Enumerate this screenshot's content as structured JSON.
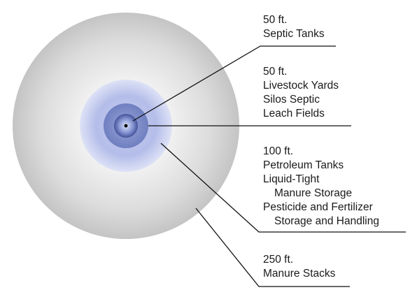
{
  "colors": {
    "outer_zone": "#c9c9c9",
    "outer_zone_center": "#ffffff",
    "zone_100ft": "#aeb8e6",
    "zone_50ft_livestock": "#7a8ac4",
    "zone_50ft_septic": "#4a5a9e",
    "center_dot": "#0a0a0a",
    "leader_line": "#111111",
    "text": "#1a1a1a"
  },
  "zones": [
    {
      "key": "septic",
      "distance": "50 ft.",
      "lines": [
        "Septic Tanks"
      ]
    },
    {
      "key": "livestock",
      "distance": "50 ft.",
      "lines": [
        "Livestock Yards",
        "Silos Septic",
        "Leach Fields"
      ]
    },
    {
      "key": "petroleum",
      "distance": "100 ft.",
      "lines": [
        "Petroleum Tanks",
        "Liquid-Tight",
        "Manure Storage",
        "Pesticide and Fertilizer",
        "Storage and Handling"
      ]
    },
    {
      "key": "manure",
      "distance": "250 ft.",
      "lines": [
        "Manure Stacks"
      ]
    }
  ]
}
